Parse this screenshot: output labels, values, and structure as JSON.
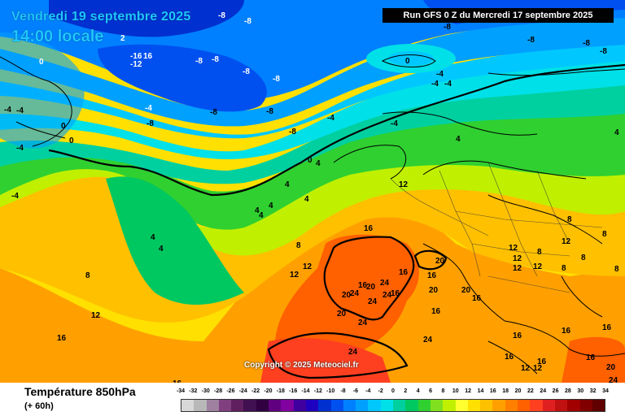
{
  "header": {
    "date": "Vendredi 19 septembre 2025",
    "time": "14:00 locale",
    "run": "Run GFS 0 Z du Mercredi 17 septembre 2025"
  },
  "copyright": "Copyright © 2025 Meteociel.fr",
  "footer": {
    "title": "Température 850hPa",
    "subtitle": "(+ 60h)"
  },
  "legend": {
    "ticks": [
      "-34",
      "-32",
      "-30",
      "-28",
      "-26",
      "-24",
      "-22",
      "-20",
      "-18",
      "-16",
      "-14",
      "-12",
      "-10",
      "-8",
      "-6",
      "-4",
      "-2",
      "0",
      "2",
      "4",
      "6",
      "8",
      "10",
      "12",
      "14",
      "16",
      "18",
      "20",
      "22",
      "24",
      "26",
      "28",
      "30",
      "32",
      "34"
    ],
    "colors": [
      "#d8d8d8",
      "#b8b8b8",
      "#a080a0",
      "#804080",
      "#602060",
      "#401050",
      "#300040",
      "#600080",
      "#8000a0",
      "#4000a0",
      "#2000c0",
      "#0030d0",
      "#0050f0",
      "#0080ff",
      "#00a0ff",
      "#00c8ff",
      "#00e0e8",
      "#00d0a0",
      "#00c860",
      "#30d030",
      "#80e020",
      "#c0f000",
      "#ffff30",
      "#ffe000",
      "#ffc000",
      "#ffa000",
      "#ff8000",
      "#ff6000",
      "#ff4020",
      "#e02020",
      "#c01010",
      "#a00000",
      "#800000",
      "#600000"
    ]
  },
  "map_labels": [
    {
      "text": "-8"
    },
    {
      "text": "-8"
    },
    {
      "text": "-8"
    },
    {
      "text": "-8"
    },
    {
      "text": "-8"
    },
    {
      "text": "-8"
    },
    {
      "text": "-8"
    },
    {
      "text": "-8"
    },
    {
      "text": "-8"
    },
    {
      "text": "-8"
    },
    {
      "text": "-8"
    },
    {
      "text": "-8"
    },
    {
      "text": "-8"
    },
    {
      "text": "-8"
    },
    {
      "text": "-16"
    },
    {
      "text": "-12"
    },
    {
      "text": "16"
    },
    {
      "text": "2"
    },
    {
      "text": "0"
    },
    {
      "text": "0"
    },
    {
      "text": "0"
    },
    {
      "text": "0"
    },
    {
      "text": "0"
    },
    {
      "text": "-4"
    },
    {
      "text": "-4"
    },
    {
      "text": "-4"
    },
    {
      "text": "-4"
    },
    {
      "text": "-4"
    },
    {
      "text": "-4"
    },
    {
      "text": "-4"
    },
    {
      "text": "-4"
    },
    {
      "text": "-4"
    },
    {
      "text": "-4"
    },
    {
      "text": "4"
    },
    {
      "text": "4"
    },
    {
      "text": "4"
    },
    {
      "text": "4"
    },
    {
      "text": "4"
    },
    {
      "text": "4"
    },
    {
      "text": "4"
    },
    {
      "text": "4"
    },
    {
      "text": "4"
    },
    {
      "text": "4"
    },
    {
      "text": "8"
    },
    {
      "text": "8"
    },
    {
      "text": "8"
    },
    {
      "text": "8"
    },
    {
      "text": "8"
    },
    {
      "text": "8"
    },
    {
      "text": "8"
    },
    {
      "text": "8"
    },
    {
      "text": "12"
    },
    {
      "text": "12"
    },
    {
      "text": "12"
    },
    {
      "text": "12"
    },
    {
      "text": "12"
    },
    {
      "text": "12"
    },
    {
      "text": "12"
    },
    {
      "text": "12"
    },
    {
      "text": "12"
    },
    {
      "text": "16"
    },
    {
      "text": "16"
    },
    {
      "text": "16"
    },
    {
      "text": "16"
    },
    {
      "text": "16"
    },
    {
      "text": "16"
    },
    {
      "text": "16"
    },
    {
      "text": "16"
    },
    {
      "text": "16"
    },
    {
      "text": "16"
    },
    {
      "text": "16"
    },
    {
      "text": "16"
    },
    {
      "text": "16"
    },
    {
      "text": "16"
    },
    {
      "text": "20"
    },
    {
      "text": "20"
    },
    {
      "text": "20"
    },
    {
      "text": "20"
    },
    {
      "text": "20"
    },
    {
      "text": "20"
    },
    {
      "text": "24"
    },
    {
      "text": "24"
    },
    {
      "text": "24"
    },
    {
      "text": "24"
    },
    {
      "text": "24"
    },
    {
      "text": "24"
    },
    {
      "text": "24"
    },
    {
      "text": "12"
    },
    {
      "text": "12"
    },
    {
      "text": "16"
    },
    {
      "text": "20"
    },
    {
      "text": "24"
    }
  ]
}
